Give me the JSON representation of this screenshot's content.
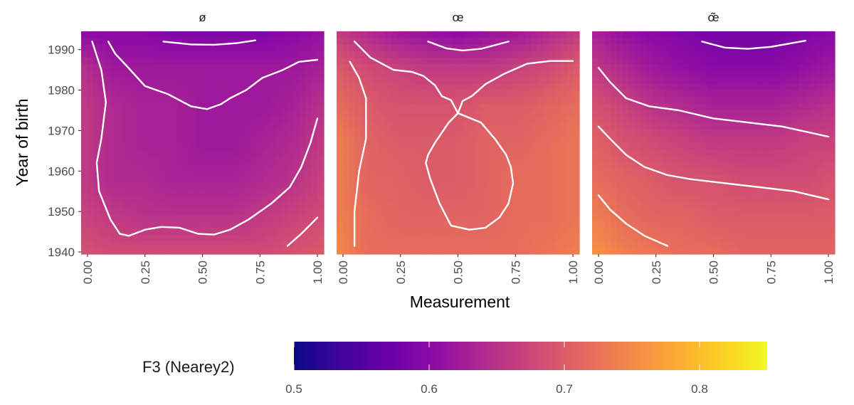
{
  "chart_data": {
    "type": "heatmap",
    "xlabel": "Measurement",
    "ylabel": "Year of birth",
    "xlim": [
      0,
      1
    ],
    "ylim": [
      1940,
      1994
    ],
    "x_ticks": [
      "0.00",
      "0.25",
      "0.50",
      "0.75",
      "1.00"
    ],
    "y_ticks": [
      "1940",
      "1950",
      "1960",
      "1970",
      "1980",
      "1990"
    ],
    "colormap": "plasma",
    "legend": {
      "title": "F3 (Nearey2)",
      "position": "bottom",
      "min": 0.5,
      "max": 0.85,
      "ticks": [
        "0.5",
        "0.6",
        "0.7",
        "0.8"
      ]
    },
    "panels": [
      {
        "label": "ø",
        "fill": [
          [
            0.6,
            0.6,
            0.6,
            0.59,
            0.59,
            0.59,
            0.59,
            0.6,
            0.61
          ],
          [
            0.65,
            0.62,
            0.62,
            0.62,
            0.62,
            0.62,
            0.62,
            0.62,
            0.63
          ],
          [
            0.66,
            0.64,
            0.63,
            0.63,
            0.62,
            0.62,
            0.62,
            0.63,
            0.65
          ],
          [
            0.66,
            0.64,
            0.63,
            0.63,
            0.62,
            0.62,
            0.63,
            0.64,
            0.66
          ],
          [
            0.66,
            0.64,
            0.64,
            0.63,
            0.63,
            0.63,
            0.64,
            0.65,
            0.67
          ],
          [
            0.67,
            0.66,
            0.65,
            0.65,
            0.65,
            0.65,
            0.66,
            0.67,
            0.68
          ],
          [
            0.69,
            0.68,
            0.68,
            0.68,
            0.68,
            0.68,
            0.68,
            0.69,
            0.7
          ]
        ],
        "contours": [
          [
            [
              0.33,
              1992
            ],
            [
              0.45,
              1991.3
            ],
            [
              0.55,
              1991.2
            ],
            [
              0.65,
              1991.6
            ],
            [
              0.73,
              1992.3
            ]
          ],
          [
            [
              0.09,
              1992
            ],
            [
              0.12,
              1989
            ],
            [
              0.17,
              1986
            ],
            [
              0.25,
              1981
            ],
            [
              0.35,
              1979
            ],
            [
              0.45,
              1976
            ],
            [
              0.52,
              1975.3
            ],
            [
              0.58,
              1976.5
            ],
            [
              0.62,
              1978
            ],
            [
              0.69,
              1980
            ],
            [
              0.76,
              1983
            ],
            [
              0.85,
              1985
            ],
            [
              0.92,
              1987
            ],
            [
              1.0,
              1987.5
            ]
          ],
          [
            [
              0.02,
              1992
            ],
            [
              0.06,
              1985
            ],
            [
              0.08,
              1977
            ],
            [
              0.06,
              1968
            ],
            [
              0.04,
              1962
            ],
            [
              0.05,
              1955
            ],
            [
              0.1,
              1948
            ],
            [
              0.14,
              1944.5
            ],
            [
              0.18,
              1944
            ],
            [
              0.25,
              1945.5
            ],
            [
              0.32,
              1946.2
            ],
            [
              0.4,
              1946
            ],
            [
              0.48,
              1944.5
            ],
            [
              0.55,
              1944.3
            ],
            [
              0.62,
              1945.5
            ],
            [
              0.7,
              1948
            ],
            [
              0.8,
              1952
            ],
            [
              0.88,
              1956
            ],
            [
              0.93,
              1961
            ],
            [
              0.97,
              1967
            ],
            [
              1.0,
              1973
            ]
          ],
          [
            [
              0.87,
              1941.5
            ],
            [
              0.93,
              1944.5
            ],
            [
              1.0,
              1948.5
            ]
          ]
        ]
      },
      {
        "label": "œ",
        "fill": [
          [
            0.66,
            0.64,
            0.62,
            0.61,
            0.6,
            0.61,
            0.62,
            0.64,
            0.66
          ],
          [
            0.7,
            0.68,
            0.67,
            0.66,
            0.66,
            0.66,
            0.67,
            0.68,
            0.7
          ],
          [
            0.72,
            0.7,
            0.69,
            0.69,
            0.69,
            0.7,
            0.7,
            0.71,
            0.72
          ],
          [
            0.74,
            0.71,
            0.7,
            0.7,
            0.7,
            0.71,
            0.71,
            0.72,
            0.73
          ],
          [
            0.74,
            0.71,
            0.71,
            0.7,
            0.7,
            0.71,
            0.72,
            0.72,
            0.73
          ],
          [
            0.74,
            0.72,
            0.71,
            0.71,
            0.71,
            0.71,
            0.72,
            0.72,
            0.73
          ],
          [
            0.75,
            0.72,
            0.72,
            0.72,
            0.72,
            0.72,
            0.72,
            0.73,
            0.74
          ]
        ],
        "contours": [
          [
            [
              0.37,
              1992
            ],
            [
              0.45,
              1990.3
            ],
            [
              0.52,
              1989.8
            ],
            [
              0.6,
              1990.2
            ],
            [
              0.72,
              1992
            ]
          ],
          [
            [
              0.05,
              1992
            ],
            [
              0.12,
              1988
            ],
            [
              0.22,
              1985
            ],
            [
              0.3,
              1984.5
            ],
            [
              0.35,
              1983.5
            ],
            [
              0.4,
              1981.2
            ],
            [
              0.43,
              1978.5
            ],
            [
              0.47,
              1977.5
            ],
            [
              0.5,
              1974.3
            ],
            [
              0.52,
              1977.3
            ],
            [
              0.56,
              1978.5
            ],
            [
              0.62,
              1981.5
            ],
            [
              0.7,
              1984
            ],
            [
              0.8,
              1986.5
            ],
            [
              0.9,
              1987.2
            ],
            [
              1.0,
              1987.2
            ]
          ],
          [
            [
              0.5,
              1974.3
            ],
            [
              0.46,
              1972
            ],
            [
              0.4,
              1967
            ],
            [
              0.37,
              1964
            ],
            [
              0.36,
              1962
            ],
            [
              0.38,
              1958
            ],
            [
              0.42,
              1952
            ],
            [
              0.47,
              1946.5
            ],
            [
              0.55,
              1945.5
            ],
            [
              0.62,
              1946
            ],
            [
              0.68,
              1948.5
            ],
            [
              0.72,
              1952
            ],
            [
              0.74,
              1957
            ],
            [
              0.73,
              1961
            ],
            [
              0.71,
              1964
            ],
            [
              0.66,
              1968
            ],
            [
              0.6,
              1972
            ],
            [
              0.5,
              1974.3
            ]
          ],
          [
            [
              0.03,
              1987
            ],
            [
              0.07,
              1983
            ],
            [
              0.1,
              1978
            ],
            [
              0.1,
              1968
            ],
            [
              0.07,
              1960
            ],
            [
              0.05,
              1950
            ],
            [
              0.05,
              1941.5
            ]
          ]
        ]
      },
      {
        "label": "œ̃",
        "fill": [
          [
            0.63,
            0.61,
            0.6,
            0.59,
            0.58,
            0.58,
            0.58,
            0.59,
            0.6
          ],
          [
            0.66,
            0.64,
            0.62,
            0.61,
            0.6,
            0.6,
            0.6,
            0.61,
            0.62
          ],
          [
            0.69,
            0.67,
            0.65,
            0.64,
            0.63,
            0.63,
            0.63,
            0.64,
            0.65
          ],
          [
            0.71,
            0.69,
            0.68,
            0.67,
            0.66,
            0.66,
            0.66,
            0.67,
            0.67
          ],
          [
            0.72,
            0.71,
            0.7,
            0.69,
            0.69,
            0.68,
            0.68,
            0.68,
            0.69
          ],
          [
            0.74,
            0.72,
            0.71,
            0.71,
            0.7,
            0.7,
            0.7,
            0.7,
            0.7
          ],
          [
            0.76,
            0.74,
            0.73,
            0.72,
            0.72,
            0.71,
            0.71,
            0.71,
            0.71
          ]
        ],
        "contours": [
          [
            [
              0.45,
              1992
            ],
            [
              0.55,
              1990.5
            ],
            [
              0.65,
              1990.2
            ],
            [
              0.75,
              1990.7
            ],
            [
              0.9,
              1992.2
            ]
          ],
          [
            [
              0.0,
              1985.5
            ],
            [
              0.05,
              1982
            ],
            [
              0.12,
              1978
            ],
            [
              0.22,
              1976
            ],
            [
              0.35,
              1975
            ],
            [
              0.5,
              1973
            ],
            [
              0.65,
              1972
            ],
            [
              0.8,
              1971
            ],
            [
              1.0,
              1968.5
            ]
          ],
          [
            [
              0.0,
              1971
            ],
            [
              0.05,
              1968
            ],
            [
              0.12,
              1964
            ],
            [
              0.2,
              1961
            ],
            [
              0.3,
              1959
            ],
            [
              0.4,
              1958
            ],
            [
              0.55,
              1957
            ],
            [
              0.7,
              1956
            ],
            [
              0.85,
              1955
            ],
            [
              1.0,
              1953
            ]
          ],
          [
            [
              0.0,
              1954
            ],
            [
              0.05,
              1950.5
            ],
            [
              0.12,
              1947
            ],
            [
              0.2,
              1944
            ],
            [
              0.3,
              1941.5
            ]
          ]
        ]
      }
    ]
  }
}
